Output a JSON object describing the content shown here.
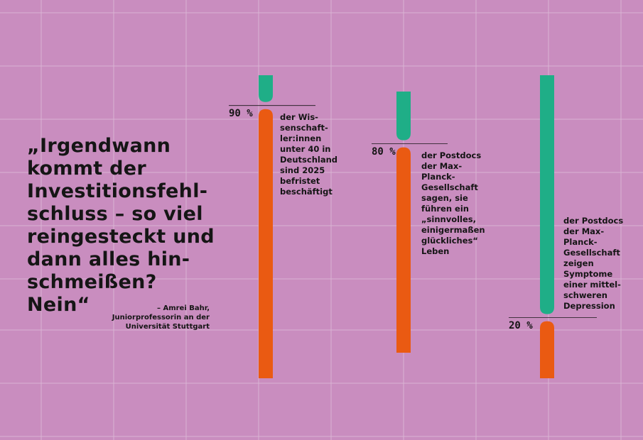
{
  "quote": {
    "text": "„Irgendwann kommt der Investitionsfehl-schluss – so viel reingesteckt und dann alles hin-schmeißen? Nein“",
    "lines": [
      "„Irgendwann",
      "kommt der",
      "Investitionsfehl-",
      "schluss – so viel",
      "reingesteckt und",
      "dann alles hin-",
      "schmeißen? Nein“"
    ],
    "attribution_lines": [
      "– Amrei Bahr,",
      "Juniorprofessorin an der",
      "Universität Stuttgart"
    ]
  },
  "colors": {
    "background": "#c98dbf",
    "grid": "#d9b3d3",
    "orange": "#ea5a12",
    "green": "#1fae87",
    "text": "#151515"
  },
  "chart_data": [
    {
      "type": "bar",
      "orientation": "vertical",
      "label": "90 %",
      "value_percent": 90,
      "description": "der Wis-\nsenschaft-\nler:innen\nunter 40 in\nDeutschland\nsind 2025\nbefristet\nbeschäftigt",
      "segments": [
        {
          "color": "#1fae87",
          "percent": 10
        },
        {
          "color": "#ea5a12",
          "percent": 90
        }
      ]
    },
    {
      "type": "bar",
      "orientation": "vertical",
      "label": "80 %",
      "value_percent": 80,
      "description": "der Postdocs\nder Max-\nPlanck-\nGesellschaft\nsagen, sie\nführen ein\n„sinnvolles,\neinigermaßen\nglückliches“\nLeben",
      "segments": [
        {
          "color": "#1fae87",
          "percent": 20
        },
        {
          "color": "#ea5a12",
          "percent": 80
        }
      ]
    },
    {
      "type": "bar",
      "orientation": "vertical",
      "label": "20 %",
      "value_percent": 20,
      "description": "der Postdocs\nder Max-\nPlanck-\nGesellschaft\nzeigen\nSymptome\neiner mittel-\nschweren\nDepression",
      "segments": [
        {
          "color": "#1fae87",
          "percent": 80
        },
        {
          "color": "#ea5a12",
          "percent": 20
        }
      ]
    }
  ]
}
